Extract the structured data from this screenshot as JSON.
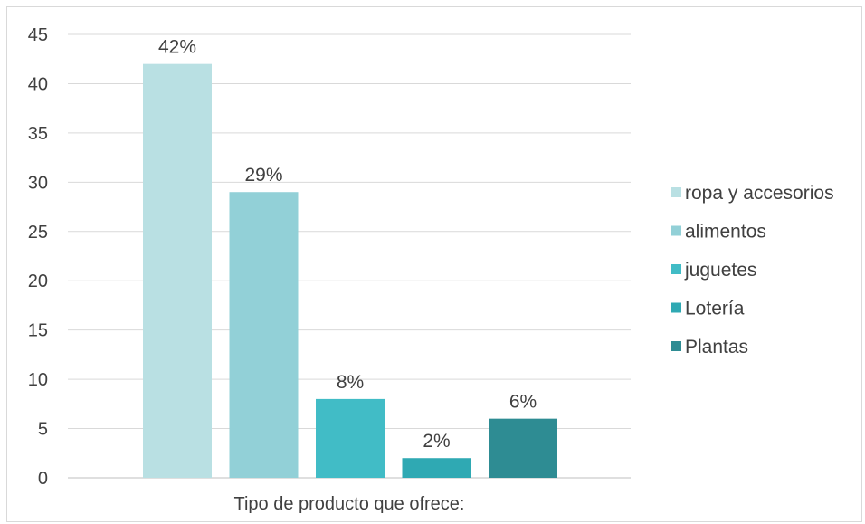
{
  "chart_data": {
    "type": "bar",
    "title": "",
    "xlabel": "Tipo de producto que ofrece:",
    "ylabel": "",
    "ylim": [
      0,
      45
    ],
    "yticks": [
      "0",
      "5",
      "10",
      "15",
      "20",
      "25",
      "30",
      "35",
      "40",
      "45"
    ],
    "grid": true,
    "legend_position": "right",
    "series": [
      {
        "name": "ropa y accesorios",
        "value": 42,
        "label": "42%",
        "color": "#b9e0e3"
      },
      {
        "name": "alimentos",
        "value": 29,
        "label": "29%",
        "color": "#92d0d7"
      },
      {
        "name": "juguetes",
        "value": 8,
        "label": "8%",
        "color": "#41bcc6"
      },
      {
        "name": "Lotería",
        "value": 2,
        "label": "2%",
        "color": "#2fa9b3"
      },
      {
        "name": "Plantas",
        "value": 6,
        "label": "6%",
        "color": "#2e8c93"
      }
    ]
  }
}
